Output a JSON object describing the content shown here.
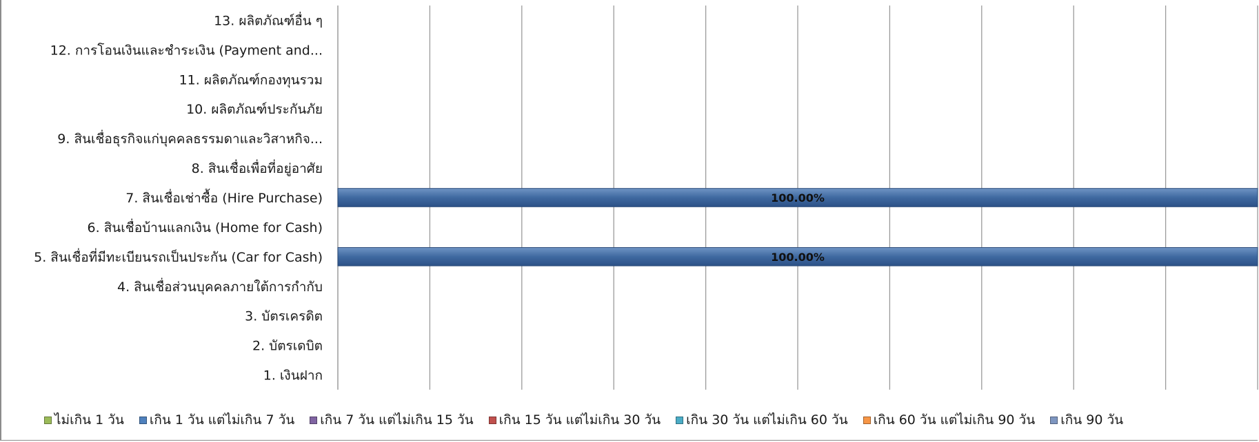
{
  "chart_data": {
    "type": "bar",
    "orientation": "horizontal",
    "stacked": true,
    "categories": [
      "13. ผลิตภัณฑ์อื่น ๆ",
      "12. การโอนเงินและชำระเงิน (Payment and...",
      "11. ผลิตภัณฑ์กองทุนรวม",
      "10. ผลิตภัณฑ์ประกันภัย",
      "9. สินเชื่อธุรกิจแก่บุคคลธรรมดาและวิสาหกิจ...",
      "8. สินเชื่อเพื่อที่อยู่อาศัย",
      "7. สินเชื่อเช่าซื้อ (Hire Purchase)",
      "6. สินเชื่อบ้านแลกเงิน (Home for Cash)",
      "5. สินเชื่อที่มีทะเบียนรถเป็นประกัน (Car for Cash)",
      "4. สินเชื่อส่วนบุคคลภายใต้การกำกับ",
      "3. บัตรเครดิต",
      "2. บัตรเดบิต",
      "1. เงินฝาก"
    ],
    "series": [
      {
        "name": "ไม่เกิน 1 วัน",
        "color": "#9bbb59",
        "values": [
          0,
          0,
          0,
          0,
          0,
          0,
          0,
          0,
          0,
          0,
          0,
          0,
          0
        ]
      },
      {
        "name": "เกิน 1 วัน แต่ไม่เกิน 7 วัน",
        "color": "#4f81bd",
        "values": [
          0,
          0,
          0,
          0,
          0,
          0,
          1,
          0,
          1,
          0,
          0,
          0,
          0
        ]
      },
      {
        "name": "เกิน 7 วัน แต่ไม่เกิน 15 วัน",
        "color": "#8064a2",
        "values": [
          0,
          0,
          0,
          0,
          0,
          0,
          0,
          0,
          0,
          0,
          0,
          0,
          0
        ]
      },
      {
        "name": "เกิน 15 วัน แต่ไม่เกิน 30 วัน",
        "color": "#c0504d",
        "values": [
          0,
          0,
          0,
          0,
          0,
          0,
          0,
          0,
          0,
          0,
          0,
          0,
          0
        ]
      },
      {
        "name": "เกิน 30 วัน แต่ไม่เกิน 60 วัน",
        "color": "#4bacc6",
        "values": [
          0,
          0,
          0,
          0,
          0,
          0,
          0,
          0,
          0,
          0,
          0,
          0,
          0
        ]
      },
      {
        "name": "เกิน 60 วัน แต่ไม่เกิน 90 วัน",
        "color": "#f79646",
        "values": [
          0,
          0,
          0,
          0,
          0,
          0,
          0,
          0,
          0,
          0,
          0,
          0,
          0
        ]
      },
      {
        "name": "เกิน 90 วัน",
        "color": "#7e96c0",
        "values": [
          0,
          0,
          0,
          0,
          0,
          0,
          0,
          0,
          0,
          0,
          0,
          0,
          0
        ]
      }
    ],
    "data_labels": [
      {
        "category": "7. สินเชื่อเช่าซื้อ (Hire Purchase)",
        "text": "100.00%"
      },
      {
        "category": "5. สินเชื่อที่มีทะเบียนรถเป็นประกัน (Car for Cash)",
        "text": "100.00%"
      }
    ],
    "xlim": [
      0,
      1
    ],
    "gridlines": true,
    "legend_position": "bottom"
  }
}
